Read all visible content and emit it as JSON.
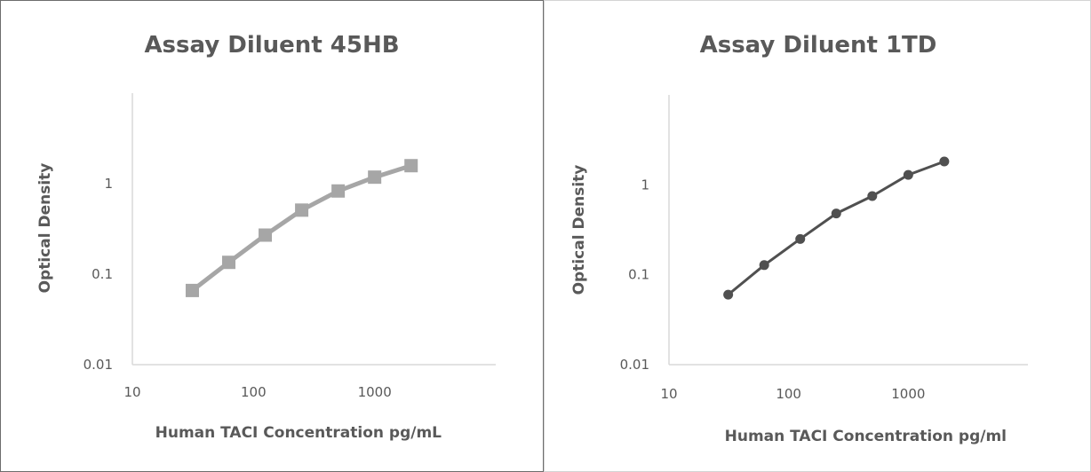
{
  "chart_data": [
    {
      "type": "line",
      "title": "Assay Diluent 45HB",
      "xlabel": "Human TACI Concentration pg/mL",
      "ylabel": "Optical Density",
      "x_scale": "log",
      "y_scale": "log",
      "xlim": [
        10,
        10000
      ],
      "ylim": [
        0.01,
        10
      ],
      "x_ticks": [
        "10",
        "100",
        "1000"
      ],
      "y_ticks": [
        "0.01",
        "0.1",
        "1"
      ],
      "grid": false,
      "marker": "square",
      "color": "#a6a6a6",
      "series": [
        {
          "x": [
            31.25,
            62.5,
            125,
            250,
            500,
            1000,
            2000
          ],
          "values": [
            0.066,
            0.135,
            0.27,
            0.51,
            0.83,
            1.18,
            1.58
          ]
        }
      ]
    },
    {
      "type": "line",
      "title": "Assay Diluent 1TD",
      "xlabel": "Human TACI Concentration pg/ml",
      "ylabel": "Optical Density",
      "x_scale": "log",
      "y_scale": "log",
      "xlim": [
        10,
        10000
      ],
      "ylim": [
        0.01,
        10
      ],
      "x_ticks": [
        "10",
        "100",
        "1000"
      ],
      "y_ticks": [
        "0.01",
        "0.1",
        "1"
      ],
      "grid": false,
      "marker": "circle",
      "color": "#505050",
      "series": [
        {
          "x": [
            31.25,
            62.5,
            125,
            250,
            500,
            1000,
            2000
          ],
          "values": [
            0.06,
            0.128,
            0.25,
            0.48,
            0.75,
            1.29,
            1.82
          ]
        }
      ]
    }
  ]
}
